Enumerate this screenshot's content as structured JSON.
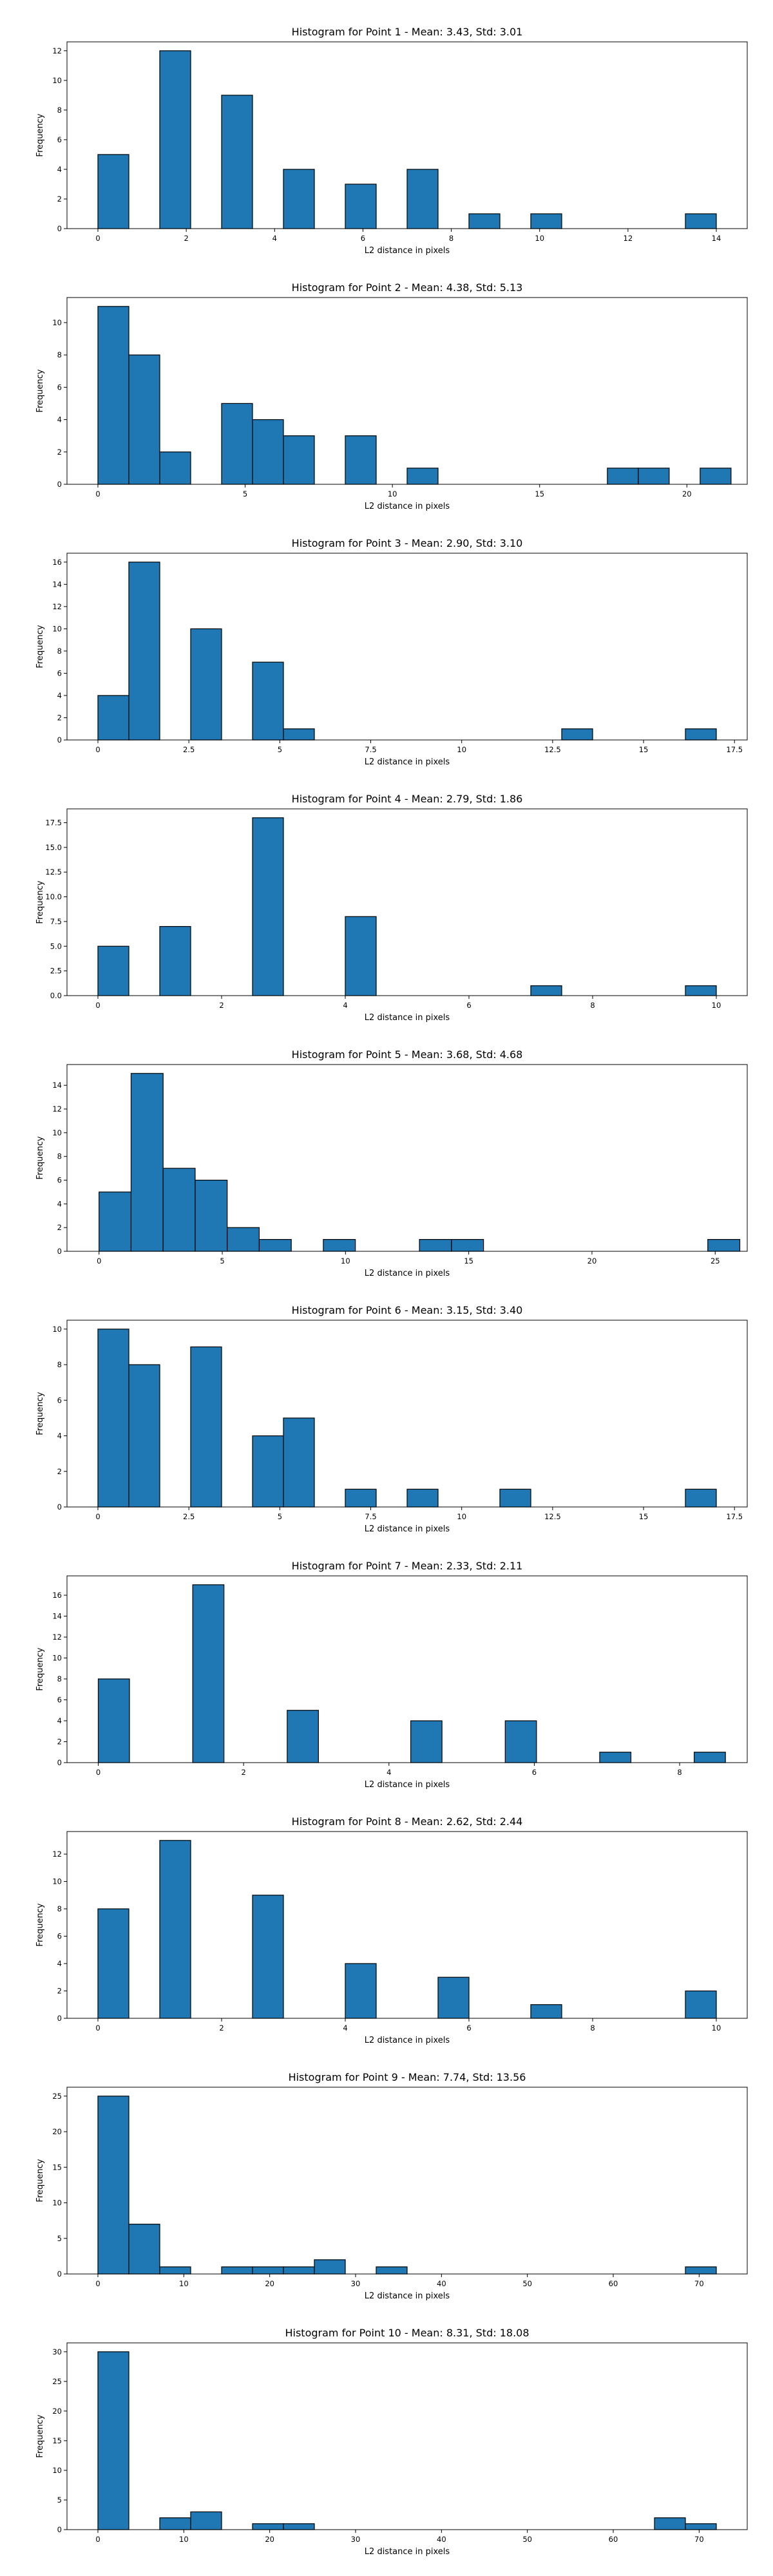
{
  "style": {
    "bar_color": "#1f77b4",
    "edge_color": "#000000"
  },
  "chart_data": [
    {
      "type": "bar",
      "title": "Histogram for Point 1 - Mean: 3.43, Std: 3.01",
      "xlabel": "L2 distance in pixels",
      "ylabel": "Frequency",
      "grid": false,
      "xlim": [
        -0.7,
        14.7
      ],
      "ylim": [
        0,
        12.6
      ],
      "xticks": [
        0,
        2,
        4,
        6,
        8,
        10,
        12,
        14
      ],
      "yticks": [
        0,
        2,
        4,
        6,
        8,
        10,
        12
      ],
      "bin_width": 0.7,
      "bins": [
        {
          "x0": 0.0,
          "count": 5
        },
        {
          "x0": 1.4,
          "count": 12
        },
        {
          "x0": 2.8,
          "count": 9
        },
        {
          "x0": 4.2,
          "count": 4
        },
        {
          "x0": 5.6,
          "count": 3
        },
        {
          "x0": 7.0,
          "count": 4
        },
        {
          "x0": 8.4,
          "count": 1
        },
        {
          "x0": 9.8,
          "count": 1
        },
        {
          "x0": 13.3,
          "count": 1
        }
      ]
    },
    {
      "type": "bar",
      "title": "Histogram for Point 2 - Mean: 4.38, Std: 5.13",
      "xlabel": "L2 distance in pixels",
      "ylabel": "Frequency",
      "grid": false,
      "xlim": [
        -1.05,
        22.05
      ],
      "ylim": [
        0,
        11.55
      ],
      "xticks": [
        0,
        5,
        10,
        15,
        20
      ],
      "yticks": [
        0,
        2,
        4,
        6,
        8,
        10
      ],
      "bin_width": 1.05,
      "bins": [
        {
          "x0": 0.0,
          "count": 11
        },
        {
          "x0": 1.05,
          "count": 8
        },
        {
          "x0": 2.1,
          "count": 2
        },
        {
          "x0": 4.2,
          "count": 5
        },
        {
          "x0": 5.25,
          "count": 4
        },
        {
          "x0": 6.3,
          "count": 3
        },
        {
          "x0": 8.4,
          "count": 3
        },
        {
          "x0": 10.5,
          "count": 1
        },
        {
          "x0": 17.3,
          "count": 1
        },
        {
          "x0": 18.35,
          "count": 1
        },
        {
          "x0": 20.45,
          "count": 1
        }
      ]
    },
    {
      "type": "bar",
      "title": "Histogram for Point 3 - Mean: 2.90, Std: 3.10",
      "xlabel": "L2 distance in pixels",
      "ylabel": "Frequency",
      "grid": false,
      "xlim": [
        -0.85,
        17.85
      ],
      "ylim": [
        0,
        16.8
      ],
      "xticks": [
        0.0,
        2.5,
        5.0,
        7.5,
        10.0,
        12.5,
        15.0,
        17.5
      ],
      "ytick_labels": [
        "0",
        "2",
        "4",
        "6",
        "8",
        "10",
        "12",
        "14",
        "16"
      ],
      "yticks": [
        0,
        2,
        4,
        6,
        8,
        10,
        12,
        14,
        16
      ],
      "bin_width": 0.85,
      "bins": [
        {
          "x0": 0.0,
          "count": 4
        },
        {
          "x0": 0.85,
          "count": 16
        },
        {
          "x0": 2.55,
          "count": 10
        },
        {
          "x0": 4.25,
          "count": 7
        },
        {
          "x0": 5.1,
          "count": 1
        },
        {
          "x0": 12.75,
          "count": 1
        },
        {
          "x0": 16.15,
          "count": 1
        }
      ]
    },
    {
      "type": "bar",
      "title": "Histogram for Point 4 - Mean: 2.79, Std: 1.86",
      "xlabel": "L2 distance in pixels",
      "ylabel": "Frequency",
      "grid": false,
      "xlim": [
        -0.5,
        10.5
      ],
      "ylim": [
        0,
        18.9
      ],
      "xticks": [
        0,
        2,
        4,
        6,
        8,
        10
      ],
      "yticks": [
        0,
        2.5,
        5,
        7.5,
        10,
        12.5,
        15,
        17.5
      ],
      "ytick_labels": [
        "0.0",
        "2.5",
        "5.0",
        "7.5",
        "10.0",
        "12.5",
        "15.0",
        "17.5"
      ],
      "bin_width": 0.5,
      "bins": [
        {
          "x0": 0.0,
          "count": 5
        },
        {
          "x0": 1.0,
          "count": 7
        },
        {
          "x0": 2.5,
          "count": 18
        },
        {
          "x0": 4.0,
          "count": 8
        },
        {
          "x0": 7.0,
          "count": 1
        },
        {
          "x0": 9.5,
          "count": 1
        }
      ]
    },
    {
      "type": "bar",
      "title": "Histogram for Point 5 - Mean: 3.68, Std: 4.68",
      "xlabel": "L2 distance in pixels",
      "ylabel": "Frequency",
      "grid": false,
      "xlim": [
        -1.3,
        26.3
      ],
      "ylim": [
        0,
        15.75
      ],
      "xticks": [
        0,
        5,
        10,
        15,
        20,
        25
      ],
      "yticks": [
        0,
        2,
        4,
        6,
        8,
        10,
        12,
        14
      ],
      "bin_width": 1.3,
      "bins": [
        {
          "x0": 0.0,
          "count": 5
        },
        {
          "x0": 1.3,
          "count": 15
        },
        {
          "x0": 2.6,
          "count": 7
        },
        {
          "x0": 3.9,
          "count": 6
        },
        {
          "x0": 5.2,
          "count": 2
        },
        {
          "x0": 6.5,
          "count": 1
        },
        {
          "x0": 9.1,
          "count": 1
        },
        {
          "x0": 13.0,
          "count": 1
        },
        {
          "x0": 14.3,
          "count": 1
        },
        {
          "x0": 24.7,
          "count": 1
        }
      ]
    },
    {
      "type": "bar",
      "title": "Histogram for Point 6 - Mean: 3.15, Std: 3.40",
      "xlabel": "L2 distance in pixels",
      "ylabel": "Frequency",
      "grid": false,
      "xlim": [
        -0.85,
        17.85
      ],
      "ylim": [
        0,
        10.5
      ],
      "xticks": [
        0.0,
        2.5,
        5.0,
        7.5,
        10.0,
        12.5,
        15.0,
        17.5
      ],
      "yticks": [
        0,
        2,
        4,
        6,
        8,
        10
      ],
      "bin_width": 0.85,
      "bins": [
        {
          "x0": 0.0,
          "count": 10
        },
        {
          "x0": 0.85,
          "count": 8
        },
        {
          "x0": 2.55,
          "count": 9
        },
        {
          "x0": 4.25,
          "count": 4
        },
        {
          "x0": 5.1,
          "count": 5
        },
        {
          "x0": 6.8,
          "count": 1
        },
        {
          "x0": 8.5,
          "count": 1
        },
        {
          "x0": 11.05,
          "count": 1
        },
        {
          "x0": 16.15,
          "count": 1
        }
      ]
    },
    {
      "type": "bar",
      "title": "Histogram for Point 7 - Mean: 2.33, Std: 2.11",
      "xlabel": "L2 distance in pixels",
      "ylabel": "Frequency",
      "grid": false,
      "xlim": [
        -0.43,
        8.93
      ],
      "ylim": [
        0,
        17.85
      ],
      "xticks": [
        0,
        2,
        4,
        6,
        8
      ],
      "yticks": [
        0,
        2,
        4,
        6,
        8,
        10,
        12,
        14,
        16
      ],
      "bin_width": 0.43,
      "bins": [
        {
          "x0": 0.0,
          "count": 8
        },
        {
          "x0": 1.3,
          "count": 17
        },
        {
          "x0": 2.6,
          "count": 5
        },
        {
          "x0": 4.3,
          "count": 4
        },
        {
          "x0": 5.6,
          "count": 4
        },
        {
          "x0": 6.9,
          "count": 1
        },
        {
          "x0": 8.2,
          "count": 1
        }
      ]
    },
    {
      "type": "bar",
      "title": "Histogram for Point 8 - Mean: 2.62, Std: 2.44",
      "xlabel": "L2 distance in pixels",
      "ylabel": "Frequency",
      "grid": false,
      "xlim": [
        -0.5,
        10.5
      ],
      "ylim": [
        0,
        13.65
      ],
      "xticks": [
        0,
        2,
        4,
        6,
        8,
        10
      ],
      "yticks": [
        0,
        2,
        4,
        6,
        8,
        10,
        12
      ],
      "bin_width": 0.5,
      "bins": [
        {
          "x0": 0.0,
          "count": 8
        },
        {
          "x0": 1.0,
          "count": 13
        },
        {
          "x0": 2.5,
          "count": 9
        },
        {
          "x0": 4.0,
          "count": 4
        },
        {
          "x0": 5.5,
          "count": 3
        },
        {
          "x0": 7.0,
          "count": 1
        },
        {
          "x0": 9.5,
          "count": 2
        }
      ]
    },
    {
      "type": "bar",
      "title": "Histogram for Point 9 - Mean: 7.74, Std: 13.56",
      "xlabel": "L2 distance in pixels",
      "ylabel": "Frequency",
      "grid": false,
      "xlim": [
        -3.6,
        75.6
      ],
      "ylim": [
        0,
        26.25
      ],
      "xticks": [
        0,
        10,
        20,
        30,
        40,
        50,
        60,
        70
      ],
      "yticks": [
        0,
        5,
        10,
        15,
        20,
        25
      ],
      "bin_width": 3.6,
      "bins": [
        {
          "x0": 0.0,
          "count": 25
        },
        {
          "x0": 3.6,
          "count": 7
        },
        {
          "x0": 7.2,
          "count": 1
        },
        {
          "x0": 14.4,
          "count": 1
        },
        {
          "x0": 18.0,
          "count": 1
        },
        {
          "x0": 21.6,
          "count": 1
        },
        {
          "x0": 25.2,
          "count": 2
        },
        {
          "x0": 32.4,
          "count": 1
        },
        {
          "x0": 68.4,
          "count": 1
        }
      ]
    },
    {
      "type": "bar",
      "title": "Histogram for Point 10 - Mean: 8.31, Std: 18.08",
      "xlabel": "L2 distance in pixels",
      "ylabel": "Frequency",
      "grid": false,
      "xlim": [
        -3.6,
        75.6
      ],
      "ylim": [
        0,
        31.5
      ],
      "xticks": [
        0,
        10,
        20,
        30,
        40,
        50,
        60,
        70
      ],
      "yticks": [
        0,
        5,
        10,
        15,
        20,
        25,
        30
      ],
      "bin_width": 3.6,
      "bins": [
        {
          "x0": 0.0,
          "count": 30
        },
        {
          "x0": 7.2,
          "count": 2
        },
        {
          "x0": 10.8,
          "count": 3
        },
        {
          "x0": 18.0,
          "count": 1
        },
        {
          "x0": 21.6,
          "count": 1
        },
        {
          "x0": 64.8,
          "count": 2
        },
        {
          "x0": 68.4,
          "count": 1
        }
      ]
    }
  ]
}
